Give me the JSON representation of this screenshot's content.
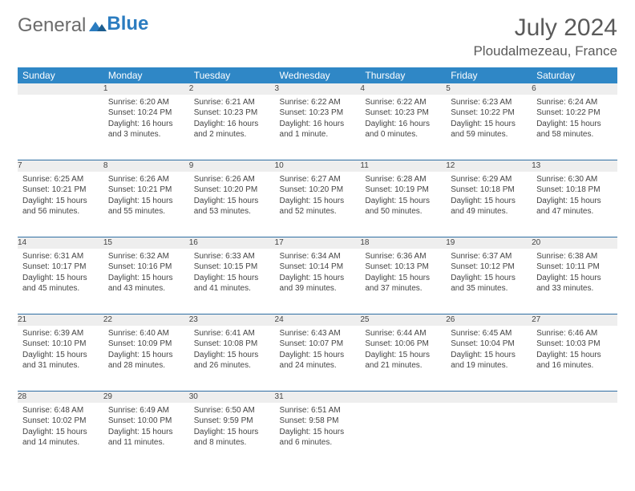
{
  "brand": {
    "general": "General",
    "blue": "Blue"
  },
  "header": {
    "month_title": "July 2024",
    "location": "Ploudalmezeau, France"
  },
  "day_headers": [
    "Sunday",
    "Monday",
    "Tuesday",
    "Wednesday",
    "Thursday",
    "Friday",
    "Saturday"
  ],
  "colors": {
    "header_bg": "#2f87c6",
    "header_text": "#ffffff",
    "daynum_bg": "#eeeeee",
    "divider": "#2f6ea3",
    "text": "#444444",
    "title_text": "#5a5a5a",
    "logo_gray": "#6b6b6b",
    "logo_blue": "#2b7cc0"
  },
  "weeks": [
    [
      null,
      {
        "n": "1",
        "sr": "Sunrise: 6:20 AM",
        "ss": "Sunset: 10:24 PM",
        "dl": "Daylight: 16 hours and 3 minutes."
      },
      {
        "n": "2",
        "sr": "Sunrise: 6:21 AM",
        "ss": "Sunset: 10:23 PM",
        "dl": "Daylight: 16 hours and 2 minutes."
      },
      {
        "n": "3",
        "sr": "Sunrise: 6:22 AM",
        "ss": "Sunset: 10:23 PM",
        "dl": "Daylight: 16 hours and 1 minute."
      },
      {
        "n": "4",
        "sr": "Sunrise: 6:22 AM",
        "ss": "Sunset: 10:23 PM",
        "dl": "Daylight: 16 hours and 0 minutes."
      },
      {
        "n": "5",
        "sr": "Sunrise: 6:23 AM",
        "ss": "Sunset: 10:22 PM",
        "dl": "Daylight: 15 hours and 59 minutes."
      },
      {
        "n": "6",
        "sr": "Sunrise: 6:24 AM",
        "ss": "Sunset: 10:22 PM",
        "dl": "Daylight: 15 hours and 58 minutes."
      }
    ],
    [
      {
        "n": "7",
        "sr": "Sunrise: 6:25 AM",
        "ss": "Sunset: 10:21 PM",
        "dl": "Daylight: 15 hours and 56 minutes."
      },
      {
        "n": "8",
        "sr": "Sunrise: 6:26 AM",
        "ss": "Sunset: 10:21 PM",
        "dl": "Daylight: 15 hours and 55 minutes."
      },
      {
        "n": "9",
        "sr": "Sunrise: 6:26 AM",
        "ss": "Sunset: 10:20 PM",
        "dl": "Daylight: 15 hours and 53 minutes."
      },
      {
        "n": "10",
        "sr": "Sunrise: 6:27 AM",
        "ss": "Sunset: 10:20 PM",
        "dl": "Daylight: 15 hours and 52 minutes."
      },
      {
        "n": "11",
        "sr": "Sunrise: 6:28 AM",
        "ss": "Sunset: 10:19 PM",
        "dl": "Daylight: 15 hours and 50 minutes."
      },
      {
        "n": "12",
        "sr": "Sunrise: 6:29 AM",
        "ss": "Sunset: 10:18 PM",
        "dl": "Daylight: 15 hours and 49 minutes."
      },
      {
        "n": "13",
        "sr": "Sunrise: 6:30 AM",
        "ss": "Sunset: 10:18 PM",
        "dl": "Daylight: 15 hours and 47 minutes."
      }
    ],
    [
      {
        "n": "14",
        "sr": "Sunrise: 6:31 AM",
        "ss": "Sunset: 10:17 PM",
        "dl": "Daylight: 15 hours and 45 minutes."
      },
      {
        "n": "15",
        "sr": "Sunrise: 6:32 AM",
        "ss": "Sunset: 10:16 PM",
        "dl": "Daylight: 15 hours and 43 minutes."
      },
      {
        "n": "16",
        "sr": "Sunrise: 6:33 AM",
        "ss": "Sunset: 10:15 PM",
        "dl": "Daylight: 15 hours and 41 minutes."
      },
      {
        "n": "17",
        "sr": "Sunrise: 6:34 AM",
        "ss": "Sunset: 10:14 PM",
        "dl": "Daylight: 15 hours and 39 minutes."
      },
      {
        "n": "18",
        "sr": "Sunrise: 6:36 AM",
        "ss": "Sunset: 10:13 PM",
        "dl": "Daylight: 15 hours and 37 minutes."
      },
      {
        "n": "19",
        "sr": "Sunrise: 6:37 AM",
        "ss": "Sunset: 10:12 PM",
        "dl": "Daylight: 15 hours and 35 minutes."
      },
      {
        "n": "20",
        "sr": "Sunrise: 6:38 AM",
        "ss": "Sunset: 10:11 PM",
        "dl": "Daylight: 15 hours and 33 minutes."
      }
    ],
    [
      {
        "n": "21",
        "sr": "Sunrise: 6:39 AM",
        "ss": "Sunset: 10:10 PM",
        "dl": "Daylight: 15 hours and 31 minutes."
      },
      {
        "n": "22",
        "sr": "Sunrise: 6:40 AM",
        "ss": "Sunset: 10:09 PM",
        "dl": "Daylight: 15 hours and 28 minutes."
      },
      {
        "n": "23",
        "sr": "Sunrise: 6:41 AM",
        "ss": "Sunset: 10:08 PM",
        "dl": "Daylight: 15 hours and 26 minutes."
      },
      {
        "n": "24",
        "sr": "Sunrise: 6:43 AM",
        "ss": "Sunset: 10:07 PM",
        "dl": "Daylight: 15 hours and 24 minutes."
      },
      {
        "n": "25",
        "sr": "Sunrise: 6:44 AM",
        "ss": "Sunset: 10:06 PM",
        "dl": "Daylight: 15 hours and 21 minutes."
      },
      {
        "n": "26",
        "sr": "Sunrise: 6:45 AM",
        "ss": "Sunset: 10:04 PM",
        "dl": "Daylight: 15 hours and 19 minutes."
      },
      {
        "n": "27",
        "sr": "Sunrise: 6:46 AM",
        "ss": "Sunset: 10:03 PM",
        "dl": "Daylight: 15 hours and 16 minutes."
      }
    ],
    [
      {
        "n": "28",
        "sr": "Sunrise: 6:48 AM",
        "ss": "Sunset: 10:02 PM",
        "dl": "Daylight: 15 hours and 14 minutes."
      },
      {
        "n": "29",
        "sr": "Sunrise: 6:49 AM",
        "ss": "Sunset: 10:00 PM",
        "dl": "Daylight: 15 hours and 11 minutes."
      },
      {
        "n": "30",
        "sr": "Sunrise: 6:50 AM",
        "ss": "Sunset: 9:59 PM",
        "dl": "Daylight: 15 hours and 8 minutes."
      },
      {
        "n": "31",
        "sr": "Sunrise: 6:51 AM",
        "ss": "Sunset: 9:58 PM",
        "dl": "Daylight: 15 hours and 6 minutes."
      },
      null,
      null,
      null
    ]
  ]
}
